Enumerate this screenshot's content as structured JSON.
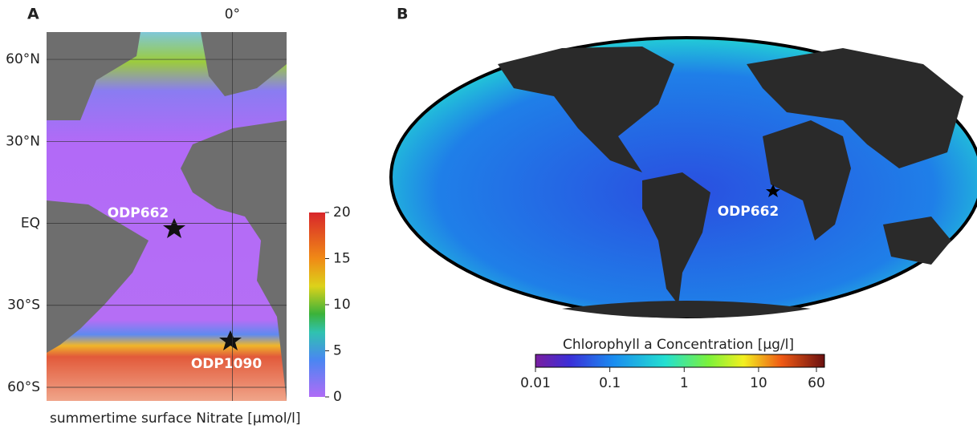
{
  "panel_a": {
    "letter": "A",
    "lat_ticks": [
      {
        "value": 60,
        "label": "60°N"
      },
      {
        "value": 30,
        "label": "30°N"
      },
      {
        "value": 0,
        "label": "EQ"
      },
      {
        "value": -30,
        "label": "30°S"
      },
      {
        "value": -60,
        "label": "60°S"
      }
    ],
    "lon_ticks": [
      {
        "value": 0,
        "label": "0°"
      }
    ],
    "ylim": [
      -65,
      70
    ],
    "xlim": [
      -65,
      19
    ],
    "sites": [
      "ODP662",
      "ODP1090"
    ],
    "colorbar": {
      "label": "summertime surface Nitrate [µmol/l]",
      "lim": [
        0,
        20
      ],
      "ticks": [
        0,
        5,
        10,
        15,
        20
      ]
    }
  },
  "panel_b": {
    "letter": "B",
    "sites": [
      "ODP662"
    ],
    "colorbar": {
      "label": "Chlorophyll a Concentration [µg/l]",
      "lim": [
        0.01,
        60
      ],
      "log": true,
      "ticks": [
        0.01,
        0.1,
        1,
        10,
        60
      ]
    }
  }
}
